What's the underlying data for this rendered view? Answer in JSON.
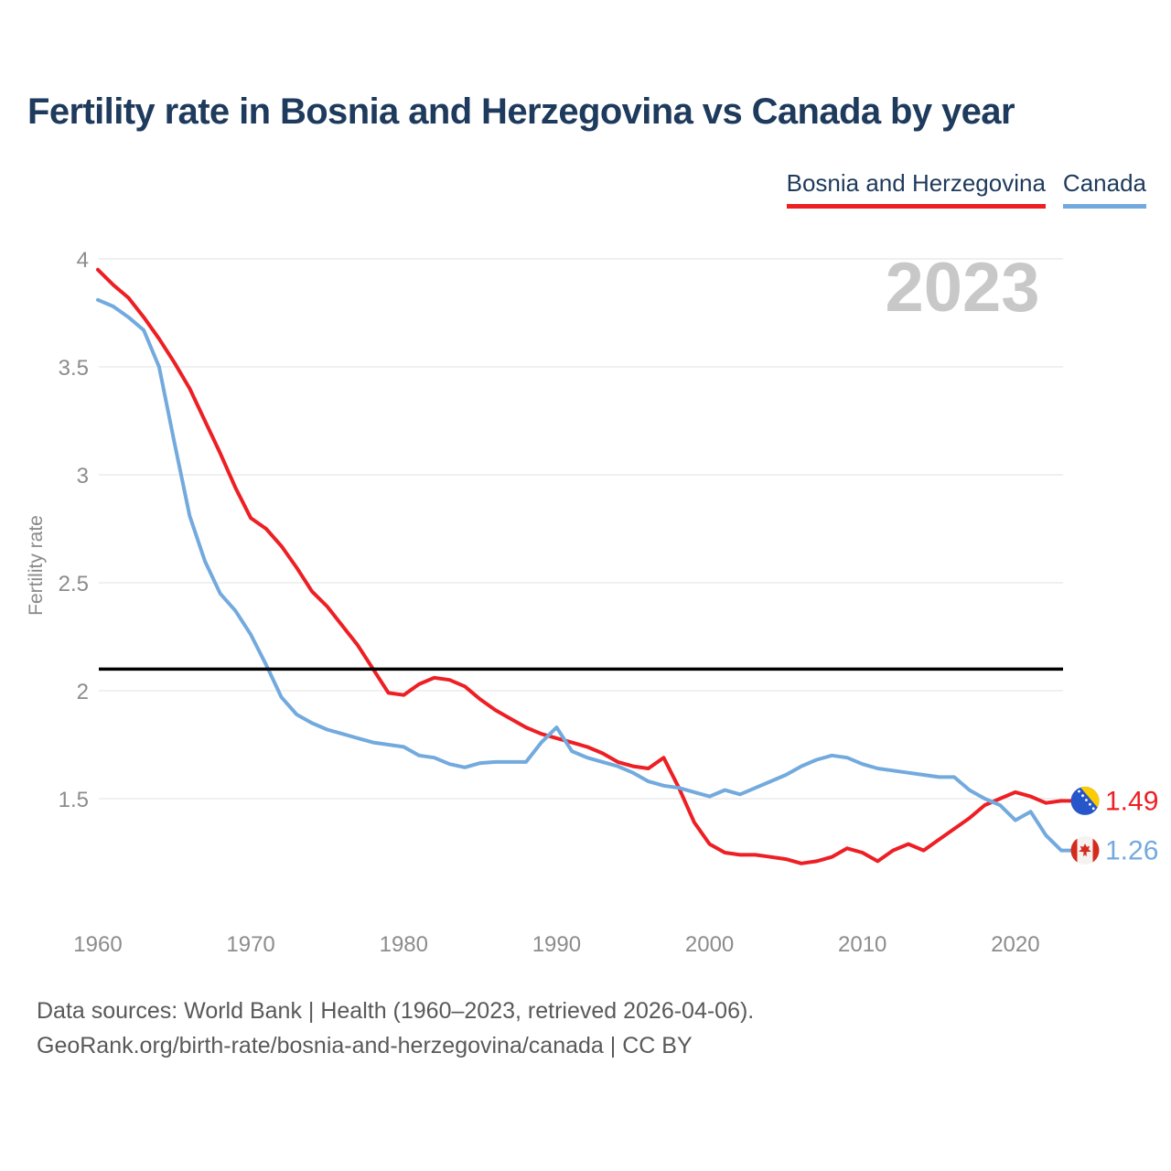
{
  "title": "Fertility rate in Bosnia and Herzegovina vs Canada by year",
  "watermark": "2023",
  "legend": {
    "items": [
      {
        "label": "Bosnia and Herzegovina",
        "color": "#ed1f24"
      },
      {
        "label": "Canada",
        "color": "#73aade"
      }
    ]
  },
  "axes": {
    "y_label": "Fertility rate",
    "y_ticks": [
      4,
      3.5,
      3,
      2.5,
      2,
      1.5
    ],
    "x_ticks": [
      1960,
      1970,
      1980,
      1990,
      2000,
      2010,
      2020
    ]
  },
  "footer": {
    "line1": "Data sources: World Bank | Health (1960–2023, retrieved 2026-04-06).",
    "line2": "GeoRank.org/birth-rate/bosnia-and-herzegovina/canada | CC BY"
  },
  "chart_data": {
    "type": "line",
    "title": "Fertility rate in Bosnia and Herzegovina vs Canada by year",
    "ylabel": "Fertility rate",
    "ylim": [
      1.1,
      4.05
    ],
    "grid": "horizontal",
    "legend_position": "top-right",
    "reference_line": {
      "value": 2.1,
      "color": "#000000"
    },
    "x": [
      1960,
      1961,
      1962,
      1963,
      1964,
      1965,
      1966,
      1967,
      1968,
      1969,
      1970,
      1971,
      1972,
      1973,
      1974,
      1975,
      1976,
      1977,
      1978,
      1979,
      1980,
      1981,
      1982,
      1983,
      1984,
      1985,
      1986,
      1987,
      1988,
      1989,
      1990,
      1991,
      1992,
      1993,
      1994,
      1995,
      1996,
      1997,
      1998,
      1999,
      2000,
      2001,
      2002,
      2003,
      2004,
      2005,
      2006,
      2007,
      2008,
      2009,
      2010,
      2011,
      2012,
      2013,
      2014,
      2015,
      2016,
      2017,
      2018,
      2019,
      2020,
      2021,
      2022,
      2023
    ],
    "series": [
      {
        "name": "Bosnia and Herzegovina",
        "color": "#ed1f24",
        "flag": "bosnia",
        "end_label": "1.49",
        "values": [
          3.95,
          3.88,
          3.82,
          3.73,
          3.63,
          3.52,
          3.4,
          3.25,
          3.1,
          2.94,
          2.8,
          2.75,
          2.67,
          2.57,
          2.46,
          2.39,
          2.3,
          2.21,
          2.1,
          1.99,
          1.98,
          2.03,
          2.06,
          2.05,
          2.02,
          1.96,
          1.91,
          1.87,
          1.83,
          1.8,
          1.78,
          1.76,
          1.74,
          1.71,
          1.67,
          1.65,
          1.64,
          1.69,
          1.55,
          1.39,
          1.29,
          1.25,
          1.24,
          1.24,
          1.23,
          1.22,
          1.2,
          1.21,
          1.23,
          1.27,
          1.25,
          1.21,
          1.26,
          1.29,
          1.26,
          1.31,
          1.36,
          1.41,
          1.47,
          1.5,
          1.53,
          1.51,
          1.48,
          1.49
        ]
      },
      {
        "name": "Canada",
        "color": "#73aade",
        "flag": "canada",
        "end_label": "1.26",
        "values": [
          3.81,
          3.78,
          3.73,
          3.67,
          3.5,
          3.15,
          2.81,
          2.6,
          2.45,
          2.37,
          2.26,
          2.12,
          1.97,
          1.89,
          1.85,
          1.82,
          1.8,
          1.78,
          1.76,
          1.75,
          1.74,
          1.7,
          1.69,
          1.66,
          1.645,
          1.665,
          1.67,
          1.67,
          1.67,
          1.76,
          1.83,
          1.72,
          1.69,
          1.67,
          1.65,
          1.62,
          1.58,
          1.56,
          1.55,
          1.53,
          1.51,
          1.54,
          1.52,
          1.55,
          1.58,
          1.61,
          1.65,
          1.68,
          1.7,
          1.69,
          1.66,
          1.64,
          1.63,
          1.62,
          1.61,
          1.6,
          1.6,
          1.54,
          1.5,
          1.47,
          1.4,
          1.44,
          1.33,
          1.26
        ]
      }
    ]
  }
}
